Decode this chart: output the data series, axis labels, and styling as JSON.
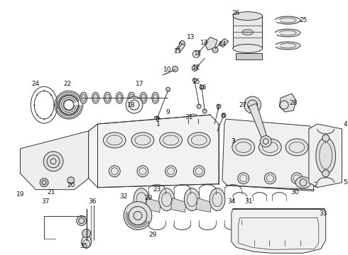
{
  "bg_color": "#ffffff",
  "line_color": "#333333",
  "label_color": "#111111",
  "label_fontsize": 6.5,
  "fig_width": 4.9,
  "fig_height": 3.6,
  "dpi": 100
}
